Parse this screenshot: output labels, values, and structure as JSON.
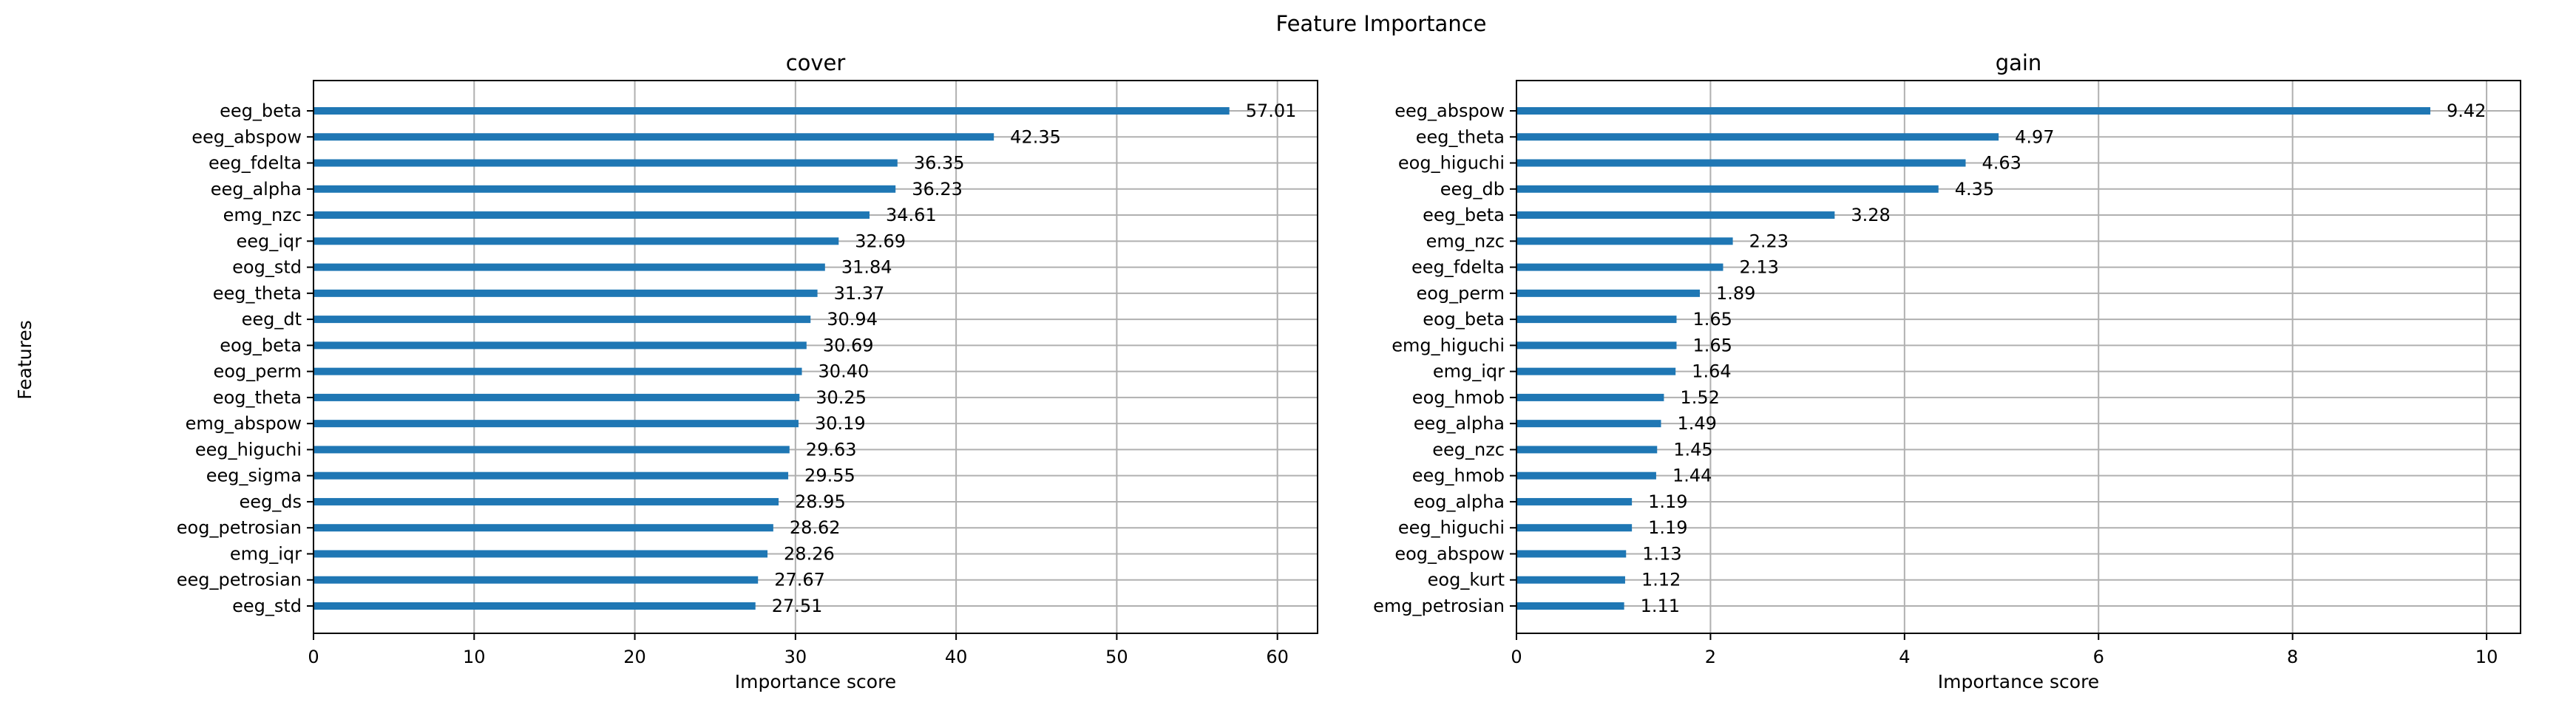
{
  "figure": {
    "title": "Feature Importance",
    "ylabel": "Features"
  },
  "chart_data": [
    {
      "type": "bar",
      "orientation": "horizontal",
      "title": "cover",
      "xlabel": "Importance score",
      "xlim": [
        0,
        62.5
      ],
      "xticks": [
        0,
        10,
        20,
        30,
        40,
        50,
        60
      ],
      "grid": true,
      "color": "#1f77b4",
      "categories": [
        "eeg_beta",
        "eeg_abspow",
        "eeg_fdelta",
        "eeg_alpha",
        "emg_nzc",
        "eeg_iqr",
        "eog_std",
        "eeg_theta",
        "eeg_dt",
        "eog_beta",
        "eog_perm",
        "eog_theta",
        "emg_abspow",
        "eeg_higuchi",
        "eeg_sigma",
        "eeg_ds",
        "eog_petrosian",
        "emg_iqr",
        "eeg_petrosian",
        "eeg_std"
      ],
      "values": [
        57.01,
        42.35,
        36.35,
        36.23,
        34.61,
        32.69,
        31.84,
        31.37,
        30.94,
        30.69,
        30.4,
        30.25,
        30.19,
        29.63,
        29.55,
        28.95,
        28.62,
        28.26,
        27.67,
        27.51
      ],
      "value_labels": [
        "57.01",
        "42.35",
        "36.35",
        "36.23",
        "34.61",
        "32.69",
        "31.84",
        "31.37",
        "30.94",
        "30.69",
        "30.40",
        "30.25",
        "30.19",
        "29.63",
        "29.55",
        "28.95",
        "28.62",
        "28.26",
        "27.67",
        "27.51"
      ]
    },
    {
      "type": "bar",
      "orientation": "horizontal",
      "title": "gain",
      "xlabel": "Importance score",
      "xlim": [
        0,
        10.35
      ],
      "xticks": [
        0,
        2,
        4,
        6,
        8,
        10
      ],
      "grid": true,
      "color": "#1f77b4",
      "categories": [
        "eeg_abspow",
        "eeg_theta",
        "eog_higuchi",
        "eeg_db",
        "eeg_beta",
        "emg_nzc",
        "eeg_fdelta",
        "eog_perm",
        "eog_beta",
        "emg_higuchi",
        "emg_iqr",
        "eog_hmob",
        "eeg_alpha",
        "eeg_nzc",
        "eeg_hmob",
        "eog_alpha",
        "eeg_higuchi",
        "eog_abspow",
        "eog_kurt",
        "emg_petrosian"
      ],
      "values": [
        9.42,
        4.97,
        4.63,
        4.35,
        3.28,
        2.23,
        2.13,
        1.89,
        1.65,
        1.65,
        1.64,
        1.52,
        1.49,
        1.45,
        1.44,
        1.19,
        1.19,
        1.13,
        1.12,
        1.11
      ],
      "value_labels": [
        "9.42",
        "4.97",
        "4.63",
        "4.35",
        "3.28",
        "2.23",
        "2.13",
        "1.89",
        "1.65",
        "1.65",
        "1.64",
        "1.52",
        "1.49",
        "1.45",
        "1.44",
        "1.19",
        "1.19",
        "1.13",
        "1.12",
        "1.11"
      ]
    }
  ]
}
